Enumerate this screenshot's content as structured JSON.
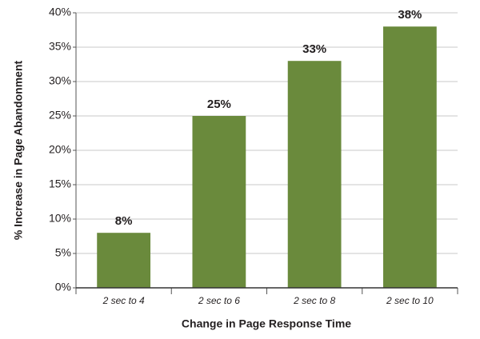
{
  "chart_data": {
    "type": "bar",
    "x_label": "Change in Page Response Time",
    "y_label": "% Increase in Page Abandonment",
    "categories": [
      "2 sec to 4",
      "2 sec to 6",
      "2 sec to 8",
      "2 sec to 10"
    ],
    "values": [
      8,
      25,
      33,
      38
    ],
    "value_labels": [
      "8%",
      "25%",
      "33%",
      "38%"
    ],
    "color": "#6a8a3c",
    "ylim": [
      0,
      40
    ],
    "yticks": [
      {
        "value": 0,
        "label": "0%"
      },
      {
        "value": 5,
        "label": "5%"
      },
      {
        "value": 10,
        "label": "10%"
      },
      {
        "value": 15,
        "label": "15%"
      },
      {
        "value": 20,
        "label": "20%"
      },
      {
        "value": 25,
        "label": "25%"
      },
      {
        "value": 30,
        "label": "30%"
      },
      {
        "value": 35,
        "label": "35%"
      },
      {
        "value": 40,
        "label": "40%"
      }
    ],
    "grid": true
  }
}
